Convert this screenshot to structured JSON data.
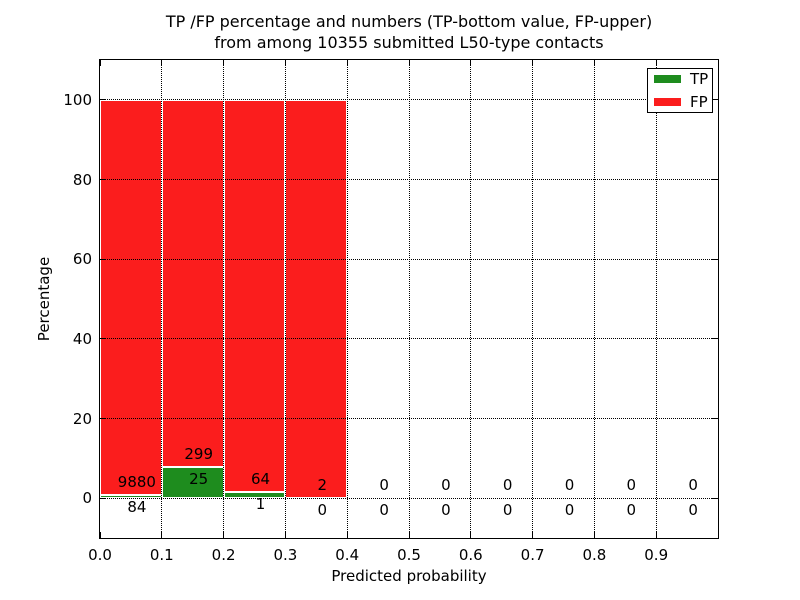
{
  "figure": {
    "background": "#ffffff",
    "tp_color": "#1e8c1e",
    "fp_color": "#fb1d1d"
  },
  "title": {
    "line1": "TP /FP percentage and numbers (TP-bottom value, FP-upper)",
    "line2": "from among 10355 submitted L50-type contacts"
  },
  "chart_data": {
    "type": "bar",
    "stacked_percentage": true,
    "title": "TP /FP percentage and numbers (TP-bottom value, FP-upper) from among 10355 submitted L50-type contacts",
    "xlabel": "Predicted probability",
    "ylabel": "Percentage",
    "xlim": [
      0.0,
      1.0
    ],
    "ylim": [
      -10,
      110
    ],
    "grid": "dotted black, drawn above bars",
    "legend_position": "upper right",
    "bin_width": 0.1,
    "bin_starts": [
      0.0,
      0.1,
      0.2,
      0.3,
      0.4,
      0.5,
      0.6,
      0.7,
      0.8,
      0.9
    ],
    "x_ticks": [
      {
        "v": 0.0,
        "label": "0.0"
      },
      {
        "v": 0.1,
        "label": "0.1"
      },
      {
        "v": 0.2,
        "label": "0.2"
      },
      {
        "v": 0.3,
        "label": "0.3"
      },
      {
        "v": 0.4,
        "label": "0.4"
      },
      {
        "v": 0.5,
        "label": "0.5"
      },
      {
        "v": 0.6,
        "label": "0.6"
      },
      {
        "v": 0.7,
        "label": "0.7"
      },
      {
        "v": 0.8,
        "label": "0.8"
      },
      {
        "v": 0.9,
        "label": "0.9"
      }
    ],
    "y_ticks": [
      {
        "v": 0,
        "label": "0"
      },
      {
        "v": 20,
        "label": "20"
      },
      {
        "v": 40,
        "label": "40"
      },
      {
        "v": 60,
        "label": "60"
      },
      {
        "v": 80,
        "label": "80"
      },
      {
        "v": 100,
        "label": "100"
      }
    ],
    "series": [
      {
        "name": "TP",
        "color": "#1e8c1e",
        "counts": [
          84,
          25,
          1,
          0,
          0,
          0,
          0,
          0,
          0,
          0
        ]
      },
      {
        "name": "FP",
        "color": "#fb1d1d",
        "counts": [
          9880,
          299,
          64,
          2,
          0,
          0,
          0,
          0,
          0,
          0
        ]
      }
    ],
    "tp_percent_of_bin": [
      0.84,
      7.72,
      1.54,
      0,
      0,
      0,
      0,
      0,
      0,
      0
    ],
    "total_submitted": 10355
  }
}
